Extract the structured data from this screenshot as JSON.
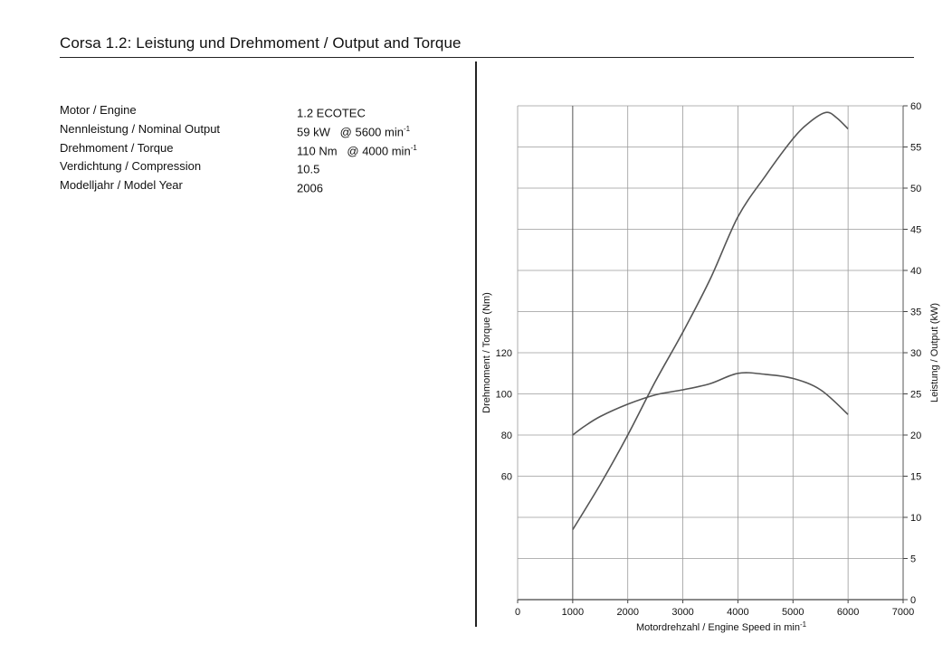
{
  "header": {
    "title": "Corsa 1.2: Leistung und Drehmoment / Output and Torque"
  },
  "specs": [
    {
      "label": "Motor / Engine",
      "value": "1.2 ECOTEC",
      "unit_sup": ""
    },
    {
      "label": "Nennleistung / Nominal Output",
      "value": "59 kW   @ 5600 min",
      "unit_sup": "-1"
    },
    {
      "label": "Drehmoment / Torque",
      "value": "110 Nm   @ 4000 min",
      "unit_sup": "-1"
    },
    {
      "label": "Verdichtung / Compression",
      "value": "10.5",
      "unit_sup": ""
    },
    {
      "label": "Modelljahr / Model Year",
      "value": "2006",
      "unit_sup": ""
    }
  ],
  "chart_data": {
    "type": "line",
    "title": "",
    "xlabel": "Motordrehzahl / Engine Speed in min",
    "xlabel_sup": "-1",
    "ylabel_left": "Drehmoment / Torque (Nm)",
    "ylabel_right": "Leistung / Output (kW)",
    "xlim": [
      0,
      7000
    ],
    "x_ticks": [
      0,
      1000,
      2000,
      3000,
      4000,
      5000,
      6000,
      7000
    ],
    "ylim_left": [
      0,
      240
    ],
    "y_left_ticks": [
      60,
      80,
      100,
      120
    ],
    "ylim_right": [
      0,
      60
    ],
    "y_right_ticks": [
      0,
      5,
      10,
      15,
      20,
      25,
      30,
      35,
      40,
      45,
      50,
      55,
      60
    ],
    "grid": true,
    "legend": "none",
    "line_color": "#555555",
    "series": [
      {
        "axis": "left",
        "x": [
          1000,
          1200,
          1500,
          2000,
          2500,
          3000,
          3500,
          4000,
          4500,
          5000,
          5500,
          6000
        ],
        "y": [
          80,
          84,
          89,
          95,
          99.5,
          102,
          105,
          110,
          109.5,
          107.5,
          102,
          90
        ]
      },
      {
        "axis": "right",
        "x": [
          1000,
          1500,
          2000,
          2500,
          3000,
          3500,
          4000,
          4500,
          5000,
          5300,
          5600,
          5800,
          6000
        ],
        "y": [
          8.5,
          14,
          20,
          26.5,
          32.5,
          39,
          46.5,
          51.5,
          56,
          58,
          59.2,
          58.5,
          57.2
        ]
      }
    ]
  }
}
